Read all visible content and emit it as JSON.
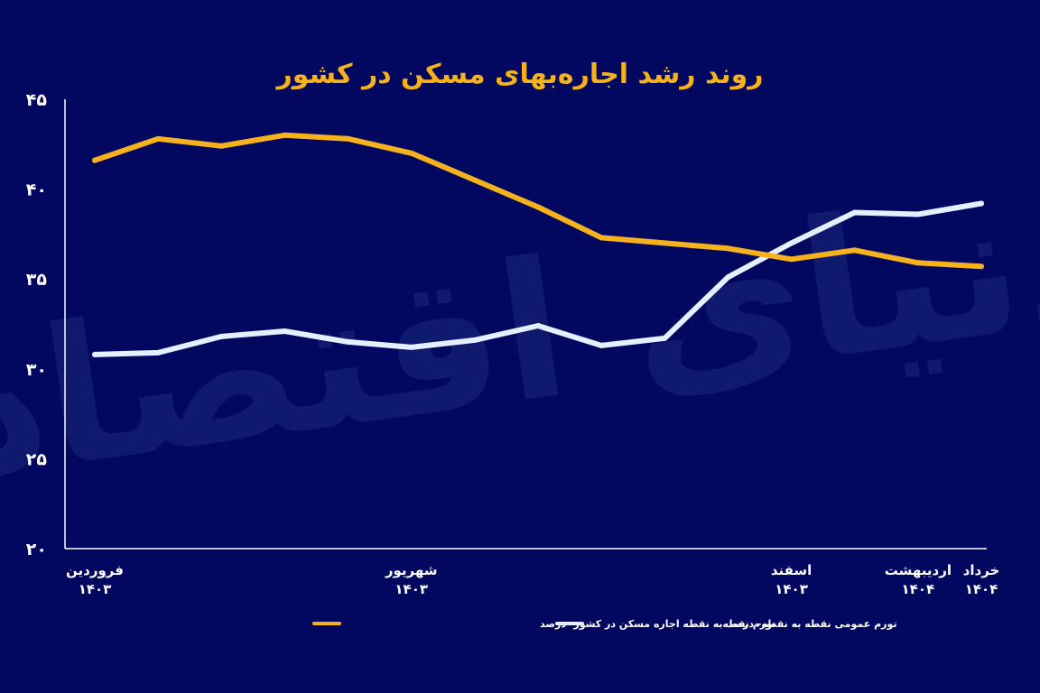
{
  "chart_data": {
    "type": "line",
    "title": "روند رشد اجاره‌بهای مسکن در کشور",
    "watermark": "دنیای اقتصاد",
    "ylim": [
      20,
      45
    ],
    "yticks": [
      20,
      25,
      30,
      35,
      40,
      45
    ],
    "ytick_labels": [
      "۲۰",
      "۲۵",
      "۳۰",
      "۳۵",
      "۴۰",
      "۴۵"
    ],
    "x": [
      1,
      2,
      3,
      4,
      5,
      6,
      7,
      8,
      9,
      10,
      11,
      12,
      13,
      14,
      15
    ],
    "xtick_labels": [
      {
        "x": 1,
        "lines": [
          "فروردین",
          "۱۴۰۳"
        ]
      },
      {
        "x": 6,
        "lines": [
          "شهریور",
          "۱۴۰۳"
        ]
      },
      {
        "x": 12,
        "lines": [
          "اسفند",
          "۱۴۰۳"
        ]
      },
      {
        "x": 14,
        "lines": [
          "اردیبهشت",
          "۱۴۰۴"
        ]
      },
      {
        "x": 15,
        "lines": [
          "خرداد",
          "۱۴۰۴"
        ]
      }
    ],
    "grid": false,
    "legend_position": "bottom-center",
    "series": [
      {
        "name": "تورم نقطه‌به نقطه اجاره مسکن در کشور- درصد",
        "color": "#f6b21c",
        "values": [
          41.6,
          42.8,
          42.4,
          43.0,
          42.8,
          42.0,
          40.5,
          39.0,
          37.3,
          37.0,
          36.7,
          36.1,
          36.6,
          35.9,
          35.7
        ]
      },
      {
        "name": "تورم عمومی نقطه به نقطه- درصد",
        "color": "#e4efff",
        "values": [
          30.8,
          30.9,
          31.8,
          32.1,
          31.5,
          31.2,
          31.6,
          32.4,
          31.3,
          31.7,
          35.1,
          37.0,
          38.7,
          38.6,
          39.2
        ]
      }
    ]
  }
}
